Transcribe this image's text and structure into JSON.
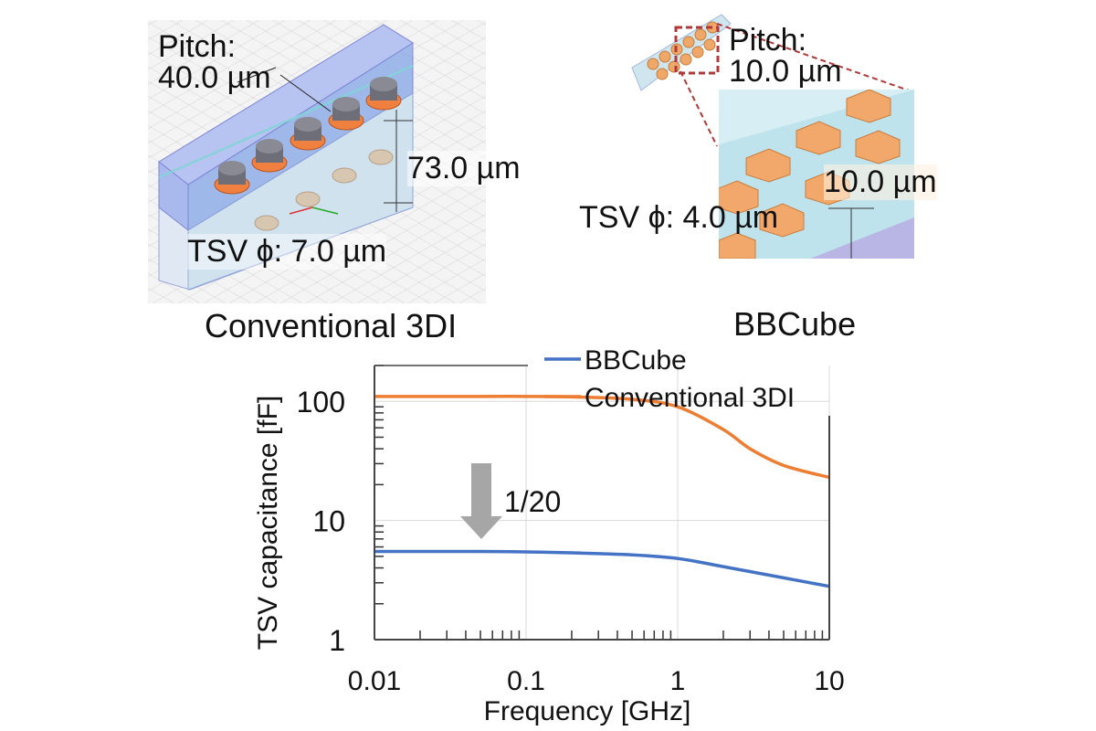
{
  "figure": {
    "conventional": {
      "caption": "Conventional 3DI",
      "pitch_label": "Pitch:",
      "pitch_value": "40.0 µm",
      "height_value": "73.0 µm",
      "tsv_label": "TSV ϕ: 7.0 µm"
    },
    "bbcube": {
      "caption": "BBCube",
      "pitch_label": "Pitch:",
      "pitch_value": "10.0 µm",
      "height_value": "10.0 µm",
      "tsv_label": "TSV ϕ: 4.0 µm"
    }
  },
  "chart_data": {
    "type": "line",
    "title": "",
    "xlabel": "Frequency [GHz]",
    "ylabel": "TSV capacitance [fF]",
    "xscale": "log",
    "yscale": "log",
    "xlim": [
      0.01,
      10
    ],
    "ylim": [
      1,
      200
    ],
    "xticks": [
      "0.01",
      "0.1",
      "1",
      "10"
    ],
    "yticks": [
      "1",
      "10",
      "100"
    ],
    "grid": true,
    "legend_position": "top-right",
    "annotation": {
      "text": "1/20",
      "type": "down-arrow",
      "color": "#a6a6a6"
    },
    "series": [
      {
        "name": "BBCube",
        "color": "#4472c4",
        "x": [
          0.01,
          0.02,
          0.05,
          0.1,
          0.2,
          0.5,
          1,
          2,
          5,
          10
        ],
        "y": [
          5.5,
          5.5,
          5.5,
          5.45,
          5.35,
          5.15,
          4.8,
          4.1,
          3.3,
          2.8
        ]
      },
      {
        "name": "Conventional 3DI",
        "color": "#ed7d31",
        "x": [
          0.01,
          0.02,
          0.05,
          0.1,
          0.2,
          0.5,
          1,
          2,
          3,
          5,
          10
        ],
        "y": [
          110,
          110,
          110,
          110,
          109,
          104,
          90,
          58,
          40,
          29,
          23
        ]
      }
    ]
  }
}
